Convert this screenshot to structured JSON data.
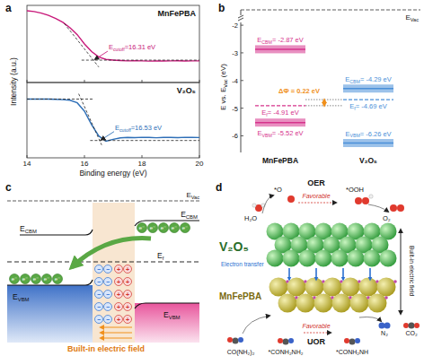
{
  "panel_labels": [
    "a",
    "b",
    "c",
    "d"
  ],
  "chart_data": [
    {
      "type": "line",
      "title": "MnFePBA",
      "y_label": "Intensity (a.u.)",
      "xlim": [
        14,
        20
      ],
      "ylim": [
        0,
        1
      ],
      "xticks": [
        14,
        16,
        18,
        20
      ],
      "yticks": [],
      "tick_labels": false,
      "series": [
        {
          "color": "#c8197a",
          "x": [
            14,
            14.25,
            14.5,
            14.75,
            15,
            15.25,
            15.5,
            15.75,
            16,
            16.25,
            16.5,
            16.75,
            17,
            17.25,
            17.5,
            17.75,
            18,
            18.25,
            18.5,
            18.75,
            19,
            19.25,
            19.5,
            19.75,
            20
          ],
          "values": [
            0.93,
            0.92,
            0.9,
            0.87,
            0.83,
            0.78,
            0.71,
            0.62,
            0.5,
            0.4,
            0.33,
            0.3,
            0.29,
            0.285,
            0.28,
            0.283,
            0.28,
            0.278,
            0.281,
            0.279,
            0.28,
            0.282,
            0.279,
            0.28,
            0.281
          ]
        },
        {
          "color": "#222222",
          "line_style": "dashed",
          "x": [
            15.3,
            16.5
          ],
          "values": [
            0.765,
            0.2
          ]
        },
        {
          "color": "#222222",
          "line_style": "dashed",
          "x": [
            15.9,
            20
          ],
          "values": [
            0.29,
            0.29
          ]
        }
      ],
      "annotation": {
        "x": 16.31,
        "label": [
          "E",
          "cutoff",
          "=16.31 eV"
        ]
      }
    },
    {
      "type": "line",
      "title": "V₂O₅",
      "x_label": "Binding energy (eV)",
      "xlim": [
        14,
        20
      ],
      "ylim": [
        0,
        1
      ],
      "xticks": [
        14,
        16,
        18,
        20
      ],
      "yticks": [],
      "tick_labels": "x",
      "series": [
        {
          "color": "#2e6fb7",
          "x": [
            14,
            14.25,
            14.5,
            14.75,
            15,
            15.25,
            15.5,
            15.75,
            16,
            16.25,
            16.5,
            16.75,
            17,
            17.25,
            17.5,
            17.75,
            18,
            18.25,
            18.5,
            18.75,
            19,
            19.25,
            19.5,
            19.75,
            20
          ],
          "values": [
            0.78,
            0.78,
            0.779,
            0.78,
            0.776,
            0.772,
            0.765,
            0.73,
            0.62,
            0.44,
            0.29,
            0.22,
            0.245,
            0.265,
            0.27,
            0.268,
            0.272,
            0.27,
            0.266,
            0.271,
            0.27,
            0.268,
            0.272,
            0.27,
            0.269
          ]
        },
        {
          "color": "#222222",
          "line_style": "dashed",
          "x": [
            15.8,
            16.6
          ],
          "values": [
            0.85,
            0.17
          ]
        },
        {
          "color": "#222222",
          "line_style": "dashed",
          "x": [
            14,
            16.3
          ],
          "values": [
            0.78,
            0.78
          ]
        },
        {
          "color": "#222222",
          "line_style": "dashed",
          "x": [
            16.2,
            20
          ],
          "values": [
            0.23,
            0.23
          ]
        }
      ],
      "annotation": {
        "x": 16.53,
        "label": [
          "E",
          "cutoff",
          "=16.53 eV"
        ]
      }
    }
  ],
  "energy_diagram": {
    "y_label": [
      "E vs. E",
      "Vac",
      " (eV)"
    ],
    "vacuum_label": [
      "E",
      "Vac"
    ],
    "ylim": [
      -6.6,
      -1.9
    ],
    "yticks": [
      -6,
      -5,
      -4,
      -3,
      -2
    ],
    "materials": [
      {
        "name": "MnFePBA",
        "color": "#d6338c",
        "levels": {
          "cbm": {
            "value": -2.87,
            "label": [
              "E",
              "CBM",
              "= -2.87 eV"
            ]
          },
          "fermi": {
            "value": -4.91,
            "label": [
              "E",
              "f",
              "= -4.91 eV"
            ]
          },
          "vbm": {
            "value": -5.52,
            "label": [
              "E",
              "VBM",
              "= -5.52 eV"
            ]
          }
        }
      },
      {
        "name": "V₂O₅",
        "color": "#4a8fd8",
        "levels": {
          "cbm": {
            "value": -4.29,
            "label": [
              "E",
              "CBM",
              "= -4.29 eV"
            ]
          },
          "fermi": {
            "value": -4.69,
            "label": [
              "E",
              "f",
              "= -4.69 eV"
            ]
          },
          "vbm": {
            "value": -6.26,
            "label": [
              "E",
              "VBM",
              "= -6.26 eV"
            ]
          }
        }
      }
    ],
    "delta_phi": {
      "value": 0.22,
      "label": "ΔΦ = 0.22 eV"
    }
  },
  "band_diagram": {
    "vacuum_label": [
      "E",
      "Vac"
    ],
    "fermi_label": [
      "E",
      "f"
    ],
    "left": {
      "cbm_label": [
        "E",
        "CBM"
      ],
      "vbm_label": [
        "E",
        "VBM"
      ]
    },
    "right": {
      "cbm_label": [
        "E",
        "CBM"
      ],
      "vbm_label": [
        "E",
        "VBM"
      ]
    },
    "electron_label": "e⁻",
    "negative_charge": "−",
    "positive_charge": "+",
    "field_label": "Built-in electric field"
  },
  "schematic": {
    "layers": {
      "top": "V₂O₅",
      "bottom": "MnFePBA"
    },
    "electron_transfer": "Electron transfer",
    "field_label": "Built-in electric field",
    "oer": {
      "title": "OER",
      "favorable": "Favorable",
      "species": [
        "H₂O",
        "*O",
        "*OOH",
        "O₂"
      ]
    },
    "uor": {
      "title": "UOR",
      "favorable": "Favorable",
      "species": [
        "CO(NH₂)₂",
        "*CONH₂NH₂",
        "*CONH₂NH",
        "N₂",
        "CO₂"
      ]
    }
  }
}
